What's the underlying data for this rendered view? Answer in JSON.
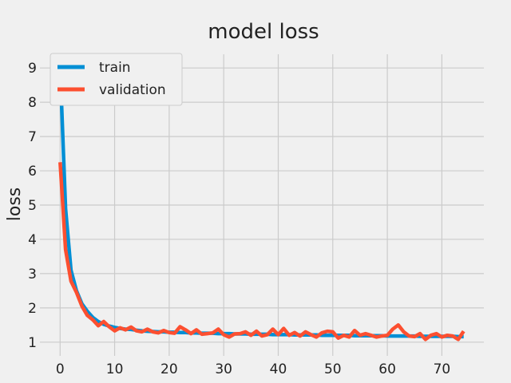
{
  "chart_data": {
    "type": "line",
    "title": "model loss",
    "xlabel": "epoch",
    "ylabel": "loss",
    "xlim": [
      -3.7,
      77.7
    ],
    "ylim": [
      0.6,
      9.4
    ],
    "xticks": [
      0,
      10,
      20,
      30,
      40,
      50,
      60,
      70
    ],
    "yticks": [
      1,
      2,
      3,
      4,
      5,
      6,
      7,
      8,
      9
    ],
    "grid": true,
    "legend_position": "top-left",
    "background": "#f0f0f0",
    "series": [
      {
        "name": "train",
        "color": "#008fd5",
        "x": [
          0,
          1,
          2,
          3,
          4,
          5,
          6,
          7,
          8,
          9,
          10,
          11,
          12,
          13,
          14,
          15,
          16,
          17,
          18,
          19,
          20,
          21,
          22,
          23,
          24,
          25,
          26,
          27,
          28,
          29,
          30,
          31,
          32,
          33,
          34,
          35,
          36,
          37,
          38,
          39,
          40,
          41,
          42,
          43,
          44,
          45,
          46,
          47,
          48,
          49,
          50,
          51,
          52,
          53,
          54,
          55,
          56,
          57,
          58,
          59,
          60,
          61,
          62,
          63,
          64,
          65,
          66,
          67,
          68,
          69,
          70,
          71,
          72,
          73,
          74
        ],
        "values": [
          9.05,
          4.9,
          3.1,
          2.5,
          2.12,
          1.9,
          1.72,
          1.6,
          1.52,
          1.47,
          1.43,
          1.4,
          1.38,
          1.37,
          1.35,
          1.33,
          1.32,
          1.31,
          1.3,
          1.3,
          1.29,
          1.29,
          1.28,
          1.28,
          1.27,
          1.27,
          1.26,
          1.26,
          1.26,
          1.25,
          1.25,
          1.25,
          1.24,
          1.24,
          1.24,
          1.23,
          1.23,
          1.23,
          1.23,
          1.22,
          1.22,
          1.22,
          1.22,
          1.21,
          1.21,
          1.21,
          1.21,
          1.21,
          1.2,
          1.2,
          1.2,
          1.2,
          1.2,
          1.2,
          1.19,
          1.19,
          1.19,
          1.19,
          1.19,
          1.19,
          1.18,
          1.18,
          1.18,
          1.18,
          1.18,
          1.18,
          1.17,
          1.17,
          1.17,
          1.17,
          1.17,
          1.17,
          1.17,
          1.16,
          1.16
        ]
      },
      {
        "name": "validation",
        "color": "#fc4f30",
        "x": [
          0,
          1,
          2,
          3,
          4,
          5,
          6,
          7,
          8,
          9,
          10,
          11,
          12,
          13,
          14,
          15,
          16,
          17,
          18,
          19,
          20,
          21,
          22,
          23,
          24,
          25,
          26,
          27,
          28,
          29,
          30,
          31,
          32,
          33,
          34,
          35,
          36,
          37,
          38,
          39,
          40,
          41,
          42,
          43,
          44,
          45,
          46,
          47,
          48,
          49,
          50,
          51,
          52,
          53,
          54,
          55,
          56,
          57,
          58,
          59,
          60,
          61,
          62,
          63,
          64,
          65,
          66,
          67,
          68,
          69,
          70,
          71,
          72,
          73,
          74
        ],
        "values": [
          6.25,
          3.7,
          2.78,
          2.45,
          2.05,
          1.78,
          1.65,
          1.48,
          1.6,
          1.45,
          1.33,
          1.42,
          1.36,
          1.44,
          1.33,
          1.3,
          1.38,
          1.3,
          1.27,
          1.34,
          1.28,
          1.26,
          1.45,
          1.36,
          1.25,
          1.36,
          1.23,
          1.25,
          1.27,
          1.38,
          1.22,
          1.15,
          1.24,
          1.25,
          1.3,
          1.2,
          1.32,
          1.18,
          1.22,
          1.38,
          1.22,
          1.4,
          1.2,
          1.28,
          1.18,
          1.3,
          1.22,
          1.15,
          1.27,
          1.32,
          1.3,
          1.12,
          1.2,
          1.15,
          1.34,
          1.2,
          1.25,
          1.2,
          1.15,
          1.18,
          1.2,
          1.38,
          1.5,
          1.3,
          1.18,
          1.16,
          1.25,
          1.08,
          1.2,
          1.25,
          1.15,
          1.2,
          1.18,
          1.08,
          1.32
        ]
      }
    ]
  }
}
